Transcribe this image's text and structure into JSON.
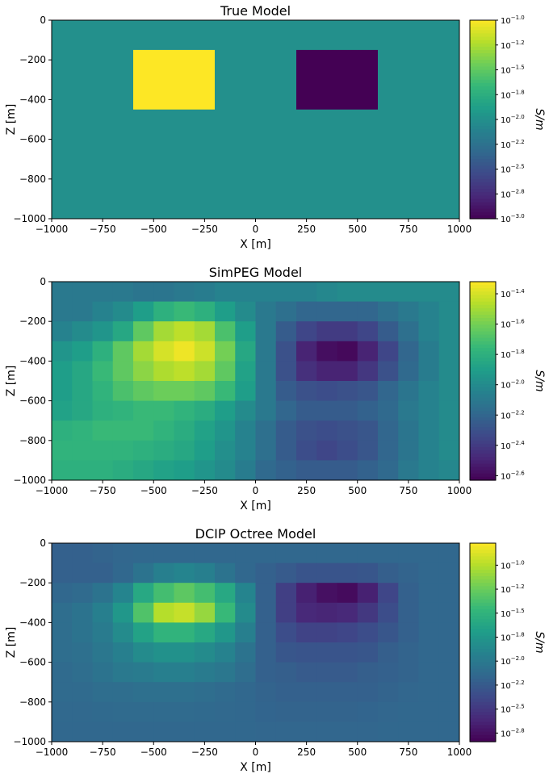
{
  "chart_data": [
    {
      "type": "heatmap",
      "title": "True Model",
      "xlabel": "X [m]",
      "ylabel": "Z [m]",
      "xlim": [
        -1000,
        1000
      ],
      "ylim": [
        -1000,
        0
      ],
      "xticks": [
        "−1000",
        "−750",
        "−500",
        "−250",
        "0",
        "250",
        "500",
        "750",
        "1000"
      ],
      "yticks": [
        "0",
        "−200",
        "−400",
        "−600",
        "−800",
        "−1000"
      ],
      "colormap": "viridis",
      "color_scale": "log10",
      "clim_log10": [
        -3.0,
        -1.0
      ],
      "colorbar_label": "S/m",
      "colorbar_ticks": [
        -1.0,
        -1.25,
        -1.5,
        -1.75,
        -2.0,
        -2.25,
        -2.5,
        -2.75,
        -3.0
      ],
      "colorbar_tick_exponents": [
        "−1.0",
        "−1.2",
        "−1.5",
        "−1.8",
        "−2.0",
        "−2.2",
        "−2.5",
        "−2.8",
        "−3.0"
      ],
      "background_log10": -2.0,
      "blocks": [
        {
          "x": [
            -600,
            -200
          ],
          "z": [
            -450,
            -150
          ],
          "log10_value": -1.0
        },
        {
          "x": [
            200,
            600
          ],
          "z": [
            -450,
            -150
          ],
          "log10_value": -3.0
        }
      ]
    },
    {
      "type": "heatmap",
      "title": "SimPEG Model",
      "xlabel": "X [m]",
      "ylabel": "Z [m]",
      "xlim": [
        -1000,
        1000
      ],
      "ylim": [
        -1000,
        0
      ],
      "xticks": [
        "−1000",
        "−750",
        "−500",
        "−250",
        "0",
        "250",
        "500",
        "750",
        "1000"
      ],
      "yticks": [
        "0",
        "−200",
        "−400",
        "−600",
        "−800",
        "−1000"
      ],
      "colormap": "viridis",
      "color_scale": "log10",
      "clim_log10": [
        -2.63,
        -1.32
      ],
      "colorbar_label": "S/m",
      "colorbar_ticks": [
        -1.4,
        -1.6,
        -1.8,
        -2.0,
        -2.2,
        -2.4,
        -2.6
      ],
      "colorbar_tick_exponents": [
        "−1.4",
        "−1.6",
        "−1.8",
        "−2.0",
        "−2.2",
        "−2.4",
        "−2.6"
      ],
      "grid_x_centers": [
        -950,
        -850,
        -750,
        -650,
        -550,
        -450,
        -350,
        -250,
        -150,
        -50,
        50,
        150,
        250,
        350,
        450,
        550,
        650,
        750,
        850,
        950
      ],
      "grid_z_centers": [
        -50,
        -150,
        -250,
        -350,
        -450,
        -550,
        -650,
        -750,
        -850,
        -950
      ],
      "log10_values": [
        [
          -2.1,
          -2.1,
          -2.1,
          -2.1,
          -2.12,
          -2.12,
          -2.1,
          -2.08,
          -2.05,
          -2.05,
          -2.05,
          -2.05,
          -2.05,
          -2.02,
          -2.0,
          -2.0,
          -2.0,
          -2.0,
          -2.0,
          -2.0
        ],
        [
          -2.1,
          -2.1,
          -2.05,
          -2.0,
          -1.9,
          -1.8,
          -1.75,
          -1.8,
          -1.9,
          -2.0,
          -2.1,
          -2.15,
          -2.2,
          -2.2,
          -2.2,
          -2.2,
          -2.15,
          -2.1,
          -2.05,
          -2.0
        ],
        [
          -2.05,
          -2.0,
          -1.95,
          -1.85,
          -1.65,
          -1.5,
          -1.45,
          -1.5,
          -1.7,
          -1.9,
          -2.1,
          -2.25,
          -2.35,
          -2.4,
          -2.4,
          -2.35,
          -2.25,
          -2.15,
          -2.05,
          -2.0
        ],
        [
          -1.95,
          -1.9,
          -1.8,
          -1.65,
          -1.5,
          -1.4,
          -1.35,
          -1.42,
          -1.6,
          -1.85,
          -2.1,
          -2.3,
          -2.5,
          -2.58,
          -2.6,
          -2.5,
          -2.35,
          -2.2,
          -2.08,
          -2.0
        ],
        [
          -1.9,
          -1.85,
          -1.75,
          -1.65,
          -1.55,
          -1.48,
          -1.45,
          -1.5,
          -1.65,
          -1.88,
          -2.1,
          -2.3,
          -2.45,
          -2.5,
          -2.5,
          -2.42,
          -2.3,
          -2.18,
          -2.08,
          -2.0
        ],
        [
          -1.9,
          -1.85,
          -1.78,
          -1.7,
          -1.65,
          -1.62,
          -1.62,
          -1.65,
          -1.75,
          -1.9,
          -2.1,
          -2.25,
          -2.3,
          -2.32,
          -2.3,
          -2.28,
          -2.2,
          -2.12,
          -2.05,
          -2.0
        ],
        [
          -1.88,
          -1.85,
          -1.8,
          -1.78,
          -1.75,
          -1.75,
          -1.78,
          -1.82,
          -1.9,
          -2.0,
          -2.1,
          -2.2,
          -2.25,
          -2.25,
          -2.25,
          -2.22,
          -2.18,
          -2.1,
          -2.05,
          -2.0
        ],
        [
          -1.8,
          -1.78,
          -1.75,
          -1.75,
          -1.75,
          -1.78,
          -1.82,
          -1.88,
          -1.95,
          -2.05,
          -2.15,
          -2.25,
          -2.3,
          -2.32,
          -2.3,
          -2.28,
          -2.2,
          -2.12,
          -2.05,
          -2.0
        ],
        [
          -1.78,
          -1.78,
          -1.78,
          -1.78,
          -1.8,
          -1.82,
          -1.85,
          -1.9,
          -1.98,
          -2.05,
          -2.15,
          -2.25,
          -2.32,
          -2.35,
          -2.32,
          -2.28,
          -2.2,
          -2.12,
          -2.05,
          -2.0
        ],
        [
          -1.8,
          -1.8,
          -1.8,
          -1.82,
          -1.85,
          -1.88,
          -1.9,
          -1.95,
          -2.0,
          -2.08,
          -2.18,
          -2.22,
          -2.25,
          -2.25,
          -2.25,
          -2.22,
          -2.18,
          -2.1,
          -2.05,
          -2.02
        ]
      ]
    },
    {
      "type": "heatmap",
      "title": "DCIP Octree Model",
      "xlabel": "X [m]",
      "ylabel": "Z [m]",
      "xlim": [
        -1000,
        1000
      ],
      "ylim": [
        -1000,
        0
      ],
      "xticks": [
        "−1000",
        "−750",
        "−500",
        "−250",
        "0",
        "250",
        "500",
        "750",
        "1000"
      ],
      "yticks": [
        "0",
        "−200",
        "−400",
        "−600",
        "−800",
        "−1000"
      ],
      "colormap": "viridis",
      "color_scale": "log10",
      "clim_log10": [
        -2.84,
        -0.77
      ],
      "colorbar_label": "S/m",
      "colorbar_ticks": [
        -1.0,
        -1.25,
        -1.5,
        -1.75,
        -2.0,
        -2.25,
        -2.5,
        -2.75
      ],
      "colorbar_tick_exponents": [
        "−1.0",
        "−1.2",
        "−1.5",
        "−1.8",
        "−2.0",
        "−2.2",
        "−2.5",
        "−2.8"
      ],
      "grid_x_centers": [
        -950,
        -850,
        -750,
        -650,
        -550,
        -450,
        -350,
        -250,
        -150,
        -50,
        50,
        150,
        250,
        350,
        450,
        550,
        650,
        750,
        850,
        950
      ],
      "grid_z_centers": [
        -50,
        -150,
        -250,
        -350,
        -450,
        -550,
        -650,
        -750,
        -850,
        -950
      ],
      "log10_values": [
        [
          -2.2,
          -2.2,
          -2.18,
          -2.16,
          -2.15,
          -2.15,
          -2.15,
          -2.15,
          -2.15,
          -2.15,
          -2.15,
          -2.15,
          -2.15,
          -2.15,
          -2.15,
          -2.15,
          -2.15,
          -2.15,
          -2.15,
          -2.15
        ],
        [
          -2.2,
          -2.2,
          -2.2,
          -2.15,
          -2.05,
          -1.95,
          -1.9,
          -1.95,
          -2.05,
          -2.15,
          -2.2,
          -2.25,
          -2.3,
          -2.3,
          -2.3,
          -2.28,
          -2.22,
          -2.18,
          -2.15,
          -2.15
        ],
        [
          -2.15,
          -2.12,
          -2.05,
          -1.9,
          -1.6,
          -1.4,
          -1.3,
          -1.4,
          -1.6,
          -1.9,
          -2.2,
          -2.45,
          -2.65,
          -2.75,
          -2.78,
          -2.65,
          -2.4,
          -2.2,
          -2.15,
          -2.15
        ],
        [
          -2.1,
          -2.05,
          -1.95,
          -1.75,
          -1.35,
          -1.0,
          -0.95,
          -1.1,
          -1.45,
          -1.85,
          -2.2,
          -2.45,
          -2.6,
          -2.62,
          -2.6,
          -2.5,
          -2.35,
          -2.2,
          -2.15,
          -2.15
        ],
        [
          -2.1,
          -2.05,
          -1.98,
          -1.85,
          -1.65,
          -1.5,
          -1.5,
          -1.6,
          -1.75,
          -1.95,
          -2.2,
          -2.35,
          -2.42,
          -2.42,
          -2.4,
          -2.35,
          -2.28,
          -2.2,
          -2.15,
          -2.15
        ],
        [
          -2.1,
          -2.08,
          -2.02,
          -1.95,
          -1.85,
          -1.8,
          -1.8,
          -1.85,
          -1.92,
          -2.05,
          -2.2,
          -2.28,
          -2.3,
          -2.3,
          -2.3,
          -2.28,
          -2.22,
          -2.18,
          -2.15,
          -2.15
        ],
        [
          -2.12,
          -2.1,
          -2.05,
          -2.0,
          -1.98,
          -1.95,
          -1.95,
          -1.98,
          -2.02,
          -2.1,
          -2.2,
          -2.22,
          -2.25,
          -2.25,
          -2.25,
          -2.22,
          -2.2,
          -2.18,
          -2.15,
          -2.15
        ],
        [
          -2.12,
          -2.12,
          -2.1,
          -2.1,
          -2.08,
          -2.08,
          -2.08,
          -2.1,
          -2.12,
          -2.15,
          -2.18,
          -2.2,
          -2.2,
          -2.2,
          -2.2,
          -2.2,
          -2.18,
          -2.16,
          -2.15,
          -2.15
        ],
        [
          -2.14,
          -2.14,
          -2.13,
          -2.12,
          -2.12,
          -2.12,
          -2.12,
          -2.13,
          -2.14,
          -2.15,
          -2.17,
          -2.18,
          -2.18,
          -2.18,
          -2.18,
          -2.17,
          -2.16,
          -2.15,
          -2.15,
          -2.15
        ],
        [
          -2.15,
          -2.15,
          -2.15,
          -2.15,
          -2.15,
          -2.15,
          -2.15,
          -2.15,
          -2.15,
          -2.15,
          -2.16,
          -2.16,
          -2.16,
          -2.16,
          -2.16,
          -2.16,
          -2.15,
          -2.15,
          -2.15,
          -2.15
        ]
      ]
    }
  ]
}
